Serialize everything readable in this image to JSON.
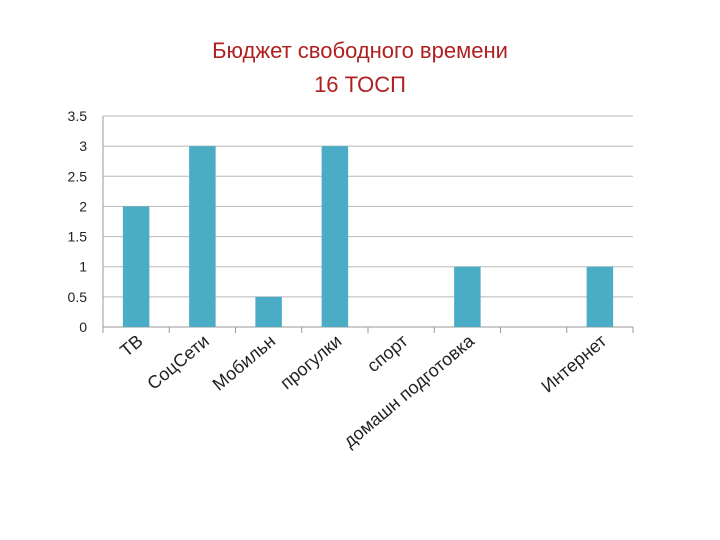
{
  "chart_data": {
    "type": "bar",
    "title": "Бюджет свободного времени",
    "subtitle": "16 ТОСП",
    "categories": [
      "ТВ",
      "СоцСети",
      "Мобильн",
      "прогулки",
      "спорт",
      "домашн подготовка",
      "",
      "Интернет"
    ],
    "values": [
      2,
      3,
      0.5,
      3,
      0,
      1,
      0,
      1
    ],
    "ylim": [
      0,
      3.5
    ],
    "yticks": [
      "0",
      "0.5",
      "1",
      "1.5",
      "2",
      "2.5",
      "3",
      "3.5"
    ],
    "grid": true,
    "legend": "none",
    "bar_color": "#4bacc6"
  }
}
